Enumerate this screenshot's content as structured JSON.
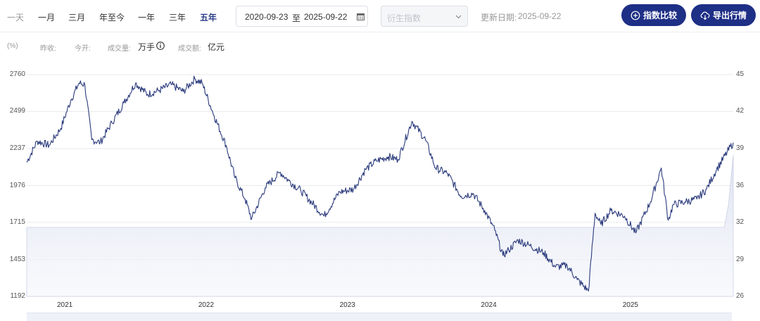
{
  "toolbar": {
    "ranges": [
      "一天",
      "一月",
      "三月",
      "年至今",
      "一年",
      "三年",
      "五年"
    ],
    "active_range": "五年",
    "date_start": "2020-09-23",
    "date_sep": "至",
    "date_end": "2025-09-22",
    "derivative_placeholder": "衍生指数",
    "update_label": "更新日期:",
    "update_date": "2025-09-22",
    "compare_button": "指数比较",
    "export_button": "导出行情"
  },
  "infobar": {
    "unit": "(%)",
    "prev_close": "昨收:",
    "open": "今开:",
    "volume_label": "成交量:",
    "volume_unit": "万手",
    "amount_label": "成交额:",
    "amount_unit": "亿元"
  },
  "colors": {
    "accent": "#1e2f86",
    "line": "#2a3a7c",
    "area_top": "#dde2f0",
    "active_tab": "#2d3c88"
  },
  "chart_data": {
    "type": "line",
    "x_range": [
      "2020-09-23",
      "2025-09-22"
    ],
    "x_ticks": [
      "2021",
      "2022",
      "2023",
      "2024",
      "2025"
    ],
    "y_left_ticks": [
      1192,
      1453,
      1715,
      1976,
      2237,
      2499,
      2760
    ],
    "y_right_ticks": [
      26,
      29,
      32,
      36,
      39,
      42,
      45
    ],
    "ylim": [
      1192,
      2760
    ],
    "grid": true,
    "series": [
      {
        "kind": "index_line",
        "x": [
          "2020-09-23",
          "2020-10-20",
          "2020-11-20",
          "2020-12-20",
          "2021-01-15",
          "2021-02-05",
          "2021-02-20",
          "2021-03-10",
          "2021-04-01",
          "2021-05-01",
          "2021-06-01",
          "2021-07-01",
          "2021-08-01",
          "2021-09-01",
          "2021-10-01",
          "2021-11-01",
          "2021-12-01",
          "2021-12-20",
          "2022-01-20",
          "2022-02-20",
          "2022-03-15",
          "2022-04-10",
          "2022-04-27",
          "2022-06-01",
          "2022-07-10",
          "2022-08-01",
          "2022-09-01",
          "2022-10-31",
          "2022-12-10",
          "2023-01-15",
          "2023-02-15",
          "2023-03-15",
          "2023-04-15",
          "2023-05-10",
          "2023-06-15",
          "2023-07-20",
          "2023-08-15",
          "2023-09-15",
          "2023-10-20",
          "2023-11-20",
          "2023-12-20",
          "2024-01-15",
          "2024-02-05",
          "2024-02-20",
          "2024-03-15",
          "2024-04-15",
          "2024-05-20",
          "2024-06-20",
          "2024-07-20",
          "2024-08-15",
          "2024-09-13",
          "2024-09-30",
          "2024-10-15",
          "2024-11-10",
          "2024-12-15",
          "2025-01-13",
          "2025-02-20",
          "2025-03-20",
          "2025-04-07",
          "2025-04-20",
          "2025-05-20",
          "2025-06-20",
          "2025-07-15",
          "2025-08-10",
          "2025-09-22"
        ],
        "values": [
          2140,
          2290,
          2260,
          2380,
          2580,
          2700,
          2690,
          2300,
          2280,
          2420,
          2560,
          2700,
          2620,
          2650,
          2690,
          2640,
          2730,
          2700,
          2470,
          2260,
          2030,
          1880,
          1740,
          1960,
          2070,
          2010,
          1940,
          1760,
          1930,
          1950,
          2090,
          2150,
          2180,
          2160,
          2430,
          2300,
          2100,
          2060,
          1900,
          1920,
          1800,
          1660,
          1480,
          1520,
          1590,
          1550,
          1500,
          1400,
          1410,
          1310,
          1230,
          1780,
          1700,
          1800,
          1760,
          1640,
          1860,
          2100,
          1730,
          1840,
          1860,
          1880,
          1950,
          2090,
          2280
        ]
      },
      {
        "kind": "volume_area",
        "x": [
          "2020-09-23",
          "2025-08-30",
          "2025-09-10",
          "2025-09-22"
        ],
        "values": [
          31.6,
          31.6,
          34,
          38.5
        ]
      }
    ]
  }
}
